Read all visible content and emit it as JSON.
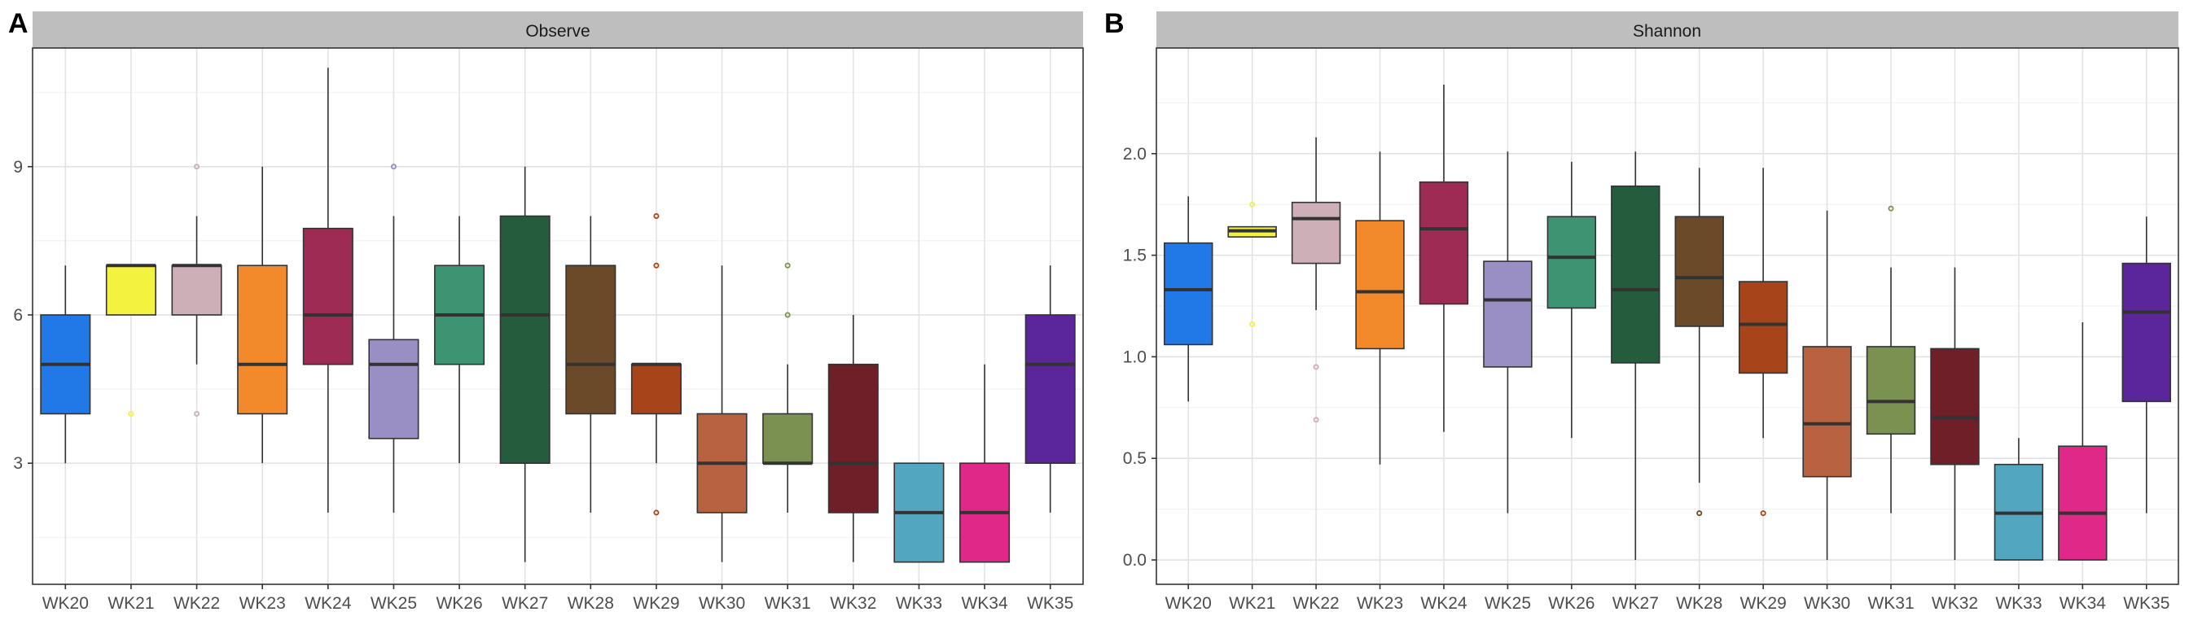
{
  "panels": [
    {
      "letter": "A",
      "strip": "Observe"
    },
    {
      "letter": "B",
      "strip": "Shannon"
    }
  ],
  "chart_data": [
    {
      "type": "box",
      "panel": "A",
      "title": "Observe",
      "xlabel": "",
      "ylabel": "",
      "ylim": [
        0.55,
        11.4
      ],
      "yticks": [
        3,
        6,
        9
      ],
      "grid": true,
      "categories": [
        "WK20",
        "WK21",
        "WK22",
        "WK23",
        "WK24",
        "WK25",
        "WK26",
        "WK27",
        "WK28",
        "WK29",
        "WK30",
        "WK31",
        "WK32",
        "WK33",
        "WK34",
        "WK35"
      ],
      "colors": [
        "#2179e8",
        "#f2f23f",
        "#cdafb8",
        "#f28a2b",
        "#9e2b54",
        "#9a8fc4",
        "#3d9472",
        "#265c3e",
        "#6b4a2a",
        "#a8441a",
        "#b8623f",
        "#7a9152",
        "#6e1f27",
        "#53a6bf",
        "#e02889",
        "#5a2699"
      ],
      "boxes": [
        {
          "min": 3,
          "q1": 4,
          "median": 5,
          "q3": 6,
          "max": 7,
          "outliers": []
        },
        {
          "min": 6,
          "q1": 6,
          "median": 7,
          "q3": 7,
          "max": 7,
          "outliers": [
            4
          ]
        },
        {
          "min": 5,
          "q1": 6,
          "median": 7,
          "q3": 7,
          "max": 8,
          "outliers": [
            9,
            4
          ]
        },
        {
          "min": 3,
          "q1": 4,
          "median": 5,
          "q3": 7,
          "max": 9,
          "outliers": []
        },
        {
          "min": 2,
          "q1": 5,
          "median": 6,
          "q3": 7.75,
          "max": 11,
          "outliers": []
        },
        {
          "min": 2,
          "q1": 3.5,
          "median": 5,
          "q3": 5.5,
          "max": 8,
          "outliers": [
            9
          ]
        },
        {
          "min": 3,
          "q1": 5,
          "median": 6,
          "q3": 7,
          "max": 8,
          "outliers": []
        },
        {
          "min": 1,
          "q1": 3,
          "median": 6,
          "q3": 8,
          "max": 9,
          "outliers": []
        },
        {
          "min": 2,
          "q1": 4,
          "median": 5,
          "q3": 7,
          "max": 8,
          "outliers": []
        },
        {
          "min": 3,
          "q1": 4,
          "median": 5,
          "q3": 5,
          "max": 5,
          "outliers": [
            8,
            7,
            2
          ]
        },
        {
          "min": 1,
          "q1": 2,
          "median": 3,
          "q3": 4,
          "max": 7,
          "outliers": []
        },
        {
          "min": 2,
          "q1": 3,
          "median": 3,
          "q3": 4,
          "max": 5,
          "outliers": [
            7,
            6
          ]
        },
        {
          "min": 1,
          "q1": 2,
          "median": 3,
          "q3": 5,
          "max": 6,
          "outliers": []
        },
        {
          "min": 1,
          "q1": 1,
          "median": 2,
          "q3": 3,
          "max": 3,
          "outliers": []
        },
        {
          "min": 1,
          "q1": 1,
          "median": 2,
          "q3": 3,
          "max": 5,
          "outliers": []
        },
        {
          "min": 2,
          "q1": 3,
          "median": 5,
          "q3": 6,
          "max": 7,
          "outliers": []
        }
      ]
    },
    {
      "type": "box",
      "panel": "B",
      "title": "Shannon",
      "xlabel": "",
      "ylabel": "",
      "ylim": [
        -0.12,
        2.52
      ],
      "yticks": [
        0.0,
        0.5,
        1.0,
        1.5,
        2.0
      ],
      "ytick_labels": [
        "0.0",
        "0.5",
        "1.0",
        "1.5",
        "2.0"
      ],
      "grid": true,
      "categories": [
        "WK20",
        "WK21",
        "WK22",
        "WK23",
        "WK24",
        "WK25",
        "WK26",
        "WK27",
        "WK28",
        "WK29",
        "WK30",
        "WK31",
        "WK32",
        "WK33",
        "WK34",
        "WK35"
      ],
      "colors": [
        "#2179e8",
        "#f2f23f",
        "#cdafb8",
        "#f28a2b",
        "#9e2b54",
        "#9a8fc4",
        "#3d9472",
        "#265c3e",
        "#6b4a2a",
        "#a8441a",
        "#b8623f",
        "#7a9152",
        "#6e1f27",
        "#53a6bf",
        "#e02889",
        "#5a2699"
      ],
      "boxes": [
        {
          "min": 0.78,
          "q1": 1.06,
          "median": 1.33,
          "q3": 1.56,
          "max": 1.79,
          "outliers": []
        },
        {
          "min": 1.59,
          "q1": 1.59,
          "median": 1.62,
          "q3": 1.64,
          "max": 1.64,
          "outliers": [
            1.75,
            1.16
          ]
        },
        {
          "min": 1.23,
          "q1": 1.46,
          "median": 1.68,
          "q3": 1.76,
          "max": 2.08,
          "outliers": [
            0.95,
            0.69
          ]
        },
        {
          "min": 0.47,
          "q1": 1.04,
          "median": 1.32,
          "q3": 1.67,
          "max": 2.01,
          "outliers": []
        },
        {
          "min": 0.63,
          "q1": 1.26,
          "median": 1.63,
          "q3": 1.86,
          "max": 2.34,
          "outliers": []
        },
        {
          "min": 0.23,
          "q1": 0.95,
          "median": 1.28,
          "q3": 1.47,
          "max": 2.01,
          "outliers": []
        },
        {
          "min": 0.6,
          "q1": 1.24,
          "median": 1.49,
          "q3": 1.69,
          "max": 1.96,
          "outliers": []
        },
        {
          "min": 0.0,
          "q1": 0.97,
          "median": 1.33,
          "q3": 1.84,
          "max": 2.01,
          "outliers": []
        },
        {
          "min": 0.38,
          "q1": 1.15,
          "median": 1.39,
          "q3": 1.69,
          "max": 1.93,
          "outliers": [
            0.23
          ]
        },
        {
          "min": 0.6,
          "q1": 0.92,
          "median": 1.16,
          "q3": 1.37,
          "max": 1.93,
          "outliers": [
            0.23
          ]
        },
        {
          "min": 0.0,
          "q1": 0.41,
          "median": 0.67,
          "q3": 1.05,
          "max": 1.72,
          "outliers": []
        },
        {
          "min": 0.23,
          "q1": 0.62,
          "median": 0.78,
          "q3": 1.05,
          "max": 1.44,
          "outliers": [
            1.73
          ]
        },
        {
          "min": 0.0,
          "q1": 0.47,
          "median": 0.7,
          "q3": 1.04,
          "max": 1.44,
          "outliers": []
        },
        {
          "min": 0.0,
          "q1": 0.0,
          "median": 0.23,
          "q3": 0.47,
          "max": 0.6,
          "outliers": []
        },
        {
          "min": 0.0,
          "q1": 0.0,
          "median": 0.23,
          "q3": 0.56,
          "max": 1.17,
          "outliers": []
        },
        {
          "min": 0.23,
          "q1": 0.78,
          "median": 1.22,
          "q3": 1.46,
          "max": 1.69,
          "outliers": []
        }
      ]
    }
  ]
}
